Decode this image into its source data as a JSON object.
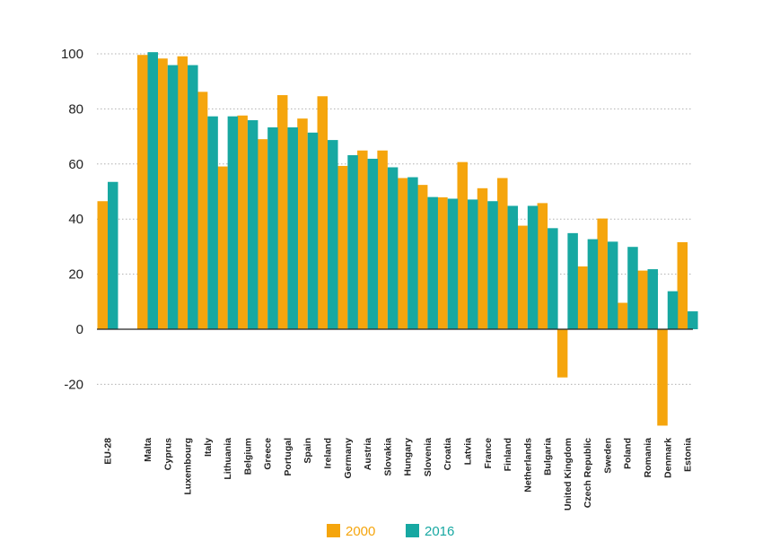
{
  "chart_data": {
    "type": "bar",
    "title": "",
    "xlabel": "",
    "ylabel": "",
    "ylim": [
      -35,
      100
    ],
    "yticks": [
      100,
      80,
      60,
      40,
      20,
      0,
      -20
    ],
    "categories": [
      "EU-28",
      "Malta",
      "Cyprus",
      "Luxembourg",
      "Italy",
      "Lithuania",
      "Belgium",
      "Greece",
      "Portugal",
      "Spain",
      "Ireland",
      "Germany",
      "Austria",
      "Slovakia",
      "Hungary",
      "Slovenia",
      "Croatia",
      "Latvia",
      "France",
      "Finland",
      "Netherlands",
      "Bulgaria",
      "United Kingdom",
      "Czech Republic",
      "Sweden",
      "Poland",
      "Romania",
      "Denmark",
      "Estonia"
    ],
    "series": [
      {
        "name": "2000",
        "color": "#f5a50d",
        "values": [
          46.5,
          99.6,
          98.3,
          99.1,
          86.2,
          59.1,
          77.6,
          69.0,
          85.0,
          76.5,
          84.6,
          59.3,
          64.9,
          64.9,
          54.9,
          52.4,
          47.9,
          60.7,
          51.2,
          54.9,
          37.6,
          45.8,
          -17.5,
          22.8,
          40.2,
          9.6,
          21.3,
          -35.0,
          31.6
        ]
      },
      {
        "name": "2016",
        "color": "#17a8a2",
        "values": [
          53.5,
          100.6,
          95.9,
          95.9,
          77.3,
          77.3,
          75.9,
          73.3,
          73.3,
          71.4,
          68.7,
          63.2,
          61.9,
          58.8,
          55.2,
          48.0,
          47.4,
          47.1,
          46.5,
          44.8,
          44.8,
          36.7,
          34.9,
          32.7,
          31.8,
          29.9,
          21.8,
          13.8,
          6.5
        ]
      }
    ],
    "legend": {
      "position": "bottom-center",
      "items": [
        "2000",
        "2016"
      ]
    },
    "grid": "dotted-horizontal"
  }
}
